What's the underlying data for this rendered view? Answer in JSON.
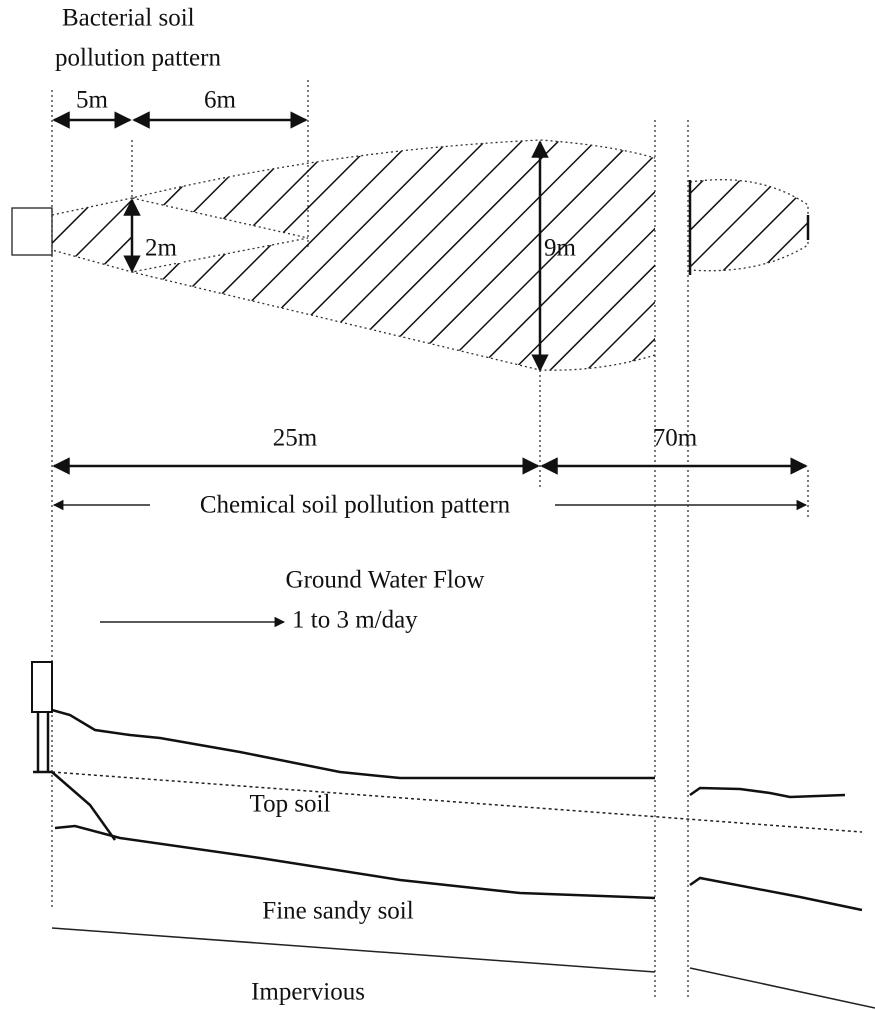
{
  "bacterial_label": [
    "Bacterial soil",
    "pollution pattern"
  ],
  "dimensions": {
    "bacterial_near": "5m",
    "bacterial_far": "6m",
    "bacterial_width": "2m",
    "chemical_width": "9m",
    "chemical_near": "25m",
    "chemical_far": "70m"
  },
  "chemical_label": "Chemical soil pollution pattern",
  "flow": {
    "title": "Ground Water Flow",
    "rate": "1 to 3 m/day"
  },
  "layers": [
    "Top soil",
    "Fine sandy soil",
    "Impervious"
  ]
}
